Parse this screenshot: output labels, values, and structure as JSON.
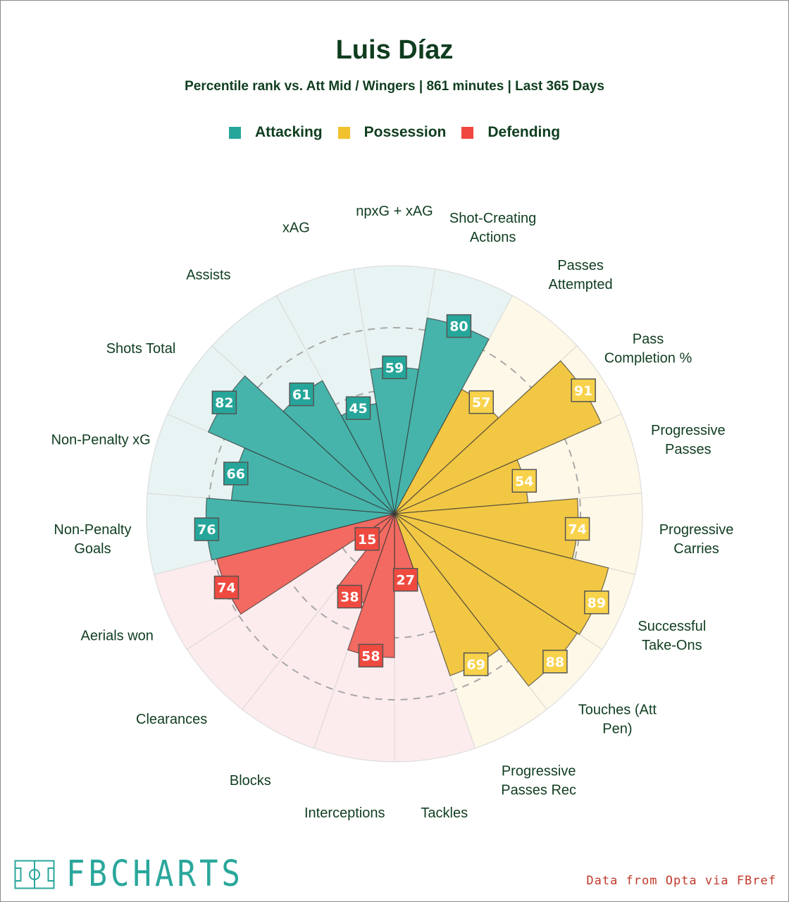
{
  "title": "Luis Díaz",
  "subtitle": "Percentile rank vs. Att Mid / Wingers | 861 minutes | Last 365 Days",
  "legend": [
    {
      "label": "Attacking",
      "color": "#26a69a"
    },
    {
      "label": "Possession",
      "color": "#f2c12e"
    },
    {
      "label": "Defending",
      "color": "#f0483e"
    }
  ],
  "footer": {
    "credit": "Data from Opta via FBref",
    "logo_text": "FBCHARTS"
  },
  "chart_data": {
    "type": "polar-bar",
    "scale": [
      0,
      100
    ],
    "categories": [
      {
        "name": "npxG + xAG",
        "label_lines": [
          "npxG + xAG"
        ],
        "value": 59,
        "group": "Attacking"
      },
      {
        "name": "Shot-Creating Actions",
        "label_lines": [
          "Shot-Creating",
          "Actions"
        ],
        "value": 80,
        "group": "Attacking"
      },
      {
        "name": "Passes Attempted",
        "label_lines": [
          "Passes",
          "Attempted"
        ],
        "value": 57,
        "group": "Possession"
      },
      {
        "name": "Pass Completion %",
        "label_lines": [
          "Pass",
          "Completion %"
        ],
        "value": 91,
        "group": "Possession"
      },
      {
        "name": "Progressive Passes",
        "label_lines": [
          "Progressive",
          "Passes"
        ],
        "value": 54,
        "group": "Possession"
      },
      {
        "name": "Progressive Carries",
        "label_lines": [
          "Progressive",
          "Carries"
        ],
        "value": 74,
        "group": "Possession"
      },
      {
        "name": "Successful Take-Ons",
        "label_lines": [
          "Successful",
          "Take-Ons"
        ],
        "value": 89,
        "group": "Possession"
      },
      {
        "name": "Touches (Att Pen)",
        "label_lines": [
          "Touches (Att",
          "Pen)"
        ],
        "value": 88,
        "group": "Possession"
      },
      {
        "name": "Progressive Passes Rec",
        "label_lines": [
          "Progressive",
          "Passes Rec"
        ],
        "value": 69,
        "group": "Possession"
      },
      {
        "name": "Tackles",
        "label_lines": [
          "Tackles"
        ],
        "value": 27,
        "group": "Defending"
      },
      {
        "name": "Interceptions",
        "label_lines": [
          "Interceptions"
        ],
        "value": 58,
        "group": "Defending"
      },
      {
        "name": "Blocks",
        "label_lines": [
          "Blocks"
        ],
        "value": 38,
        "group": "Defending"
      },
      {
        "name": "Clearances",
        "label_lines": [
          "Clearances"
        ],
        "value": 15,
        "group": "Defending"
      },
      {
        "name": "Aerials won",
        "label_lines": [
          "Aerials won"
        ],
        "value": 74,
        "group": "Defending"
      },
      {
        "name": "Non-Penalty Goals",
        "label_lines": [
          "Non-Penalty",
          "Goals"
        ],
        "value": 76,
        "group": "Attacking"
      },
      {
        "name": "Non-Penalty xG",
        "label_lines": [
          "Non-Penalty xG"
        ],
        "value": 66,
        "group": "Attacking"
      },
      {
        "name": "Shots Total",
        "label_lines": [
          "Shots Total"
        ],
        "value": 82,
        "group": "Attacking"
      },
      {
        "name": "Assists",
        "label_lines": [
          "Assists"
        ],
        "value": 61,
        "group": "Attacking"
      },
      {
        "name": "xAG",
        "label_lines": [
          "xAG"
        ],
        "value": 45,
        "group": "Attacking"
      }
    ],
    "group_colors": {
      "Attacking": {
        "bar": "#46b4ab",
        "bg": "#e8f4f3",
        "badge": "#26a69a",
        "text": "#ffffff"
      },
      "Possession": {
        "bar": "#f2c744",
        "bg": "#fdf8e7",
        "badge": "#f8d24a",
        "text": "#ffffff"
      },
      "Defending": {
        "bar": "#f26a61",
        "bg": "#fdeced",
        "badge": "#ef4a40",
        "text": "#ffffff"
      }
    },
    "grid": true
  }
}
